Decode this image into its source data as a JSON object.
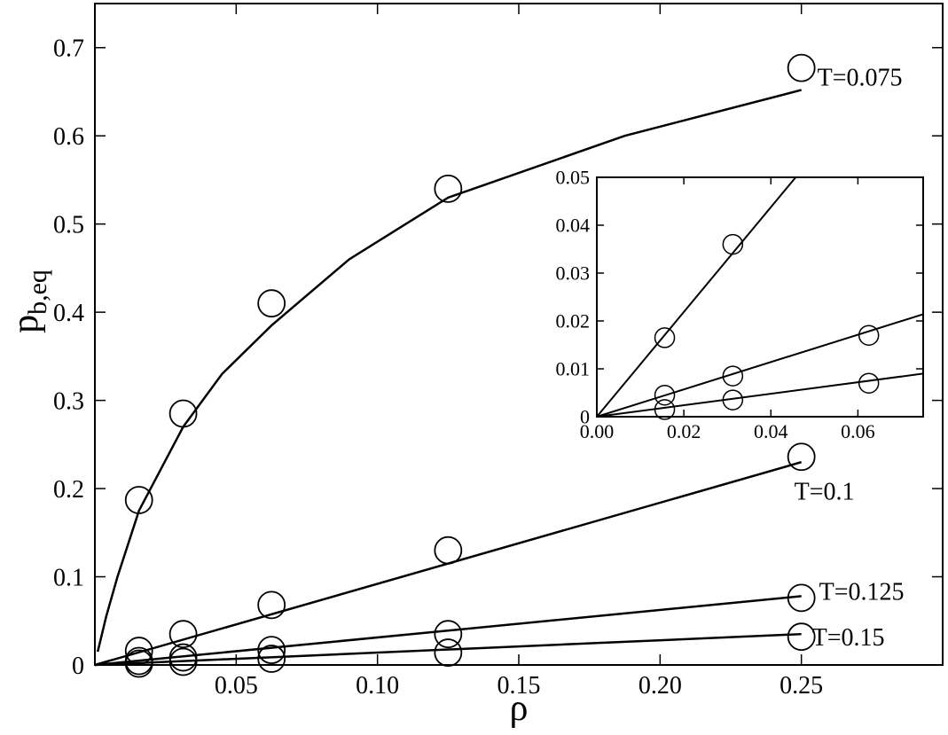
{
  "chart_data": [
    {
      "type": "scatter",
      "xlabel": "ρ",
      "ylabel": {
        "text": "p",
        "subscript": "b,eq"
      },
      "xlim": [
        0,
        0.3
      ],
      "ylim": [
        0,
        0.75
      ],
      "xticks": [
        0.05,
        {
          "value": 0.1,
          "label": "0.10"
        },
        0.15,
        {
          "value": 0.2,
          "label": "0.20"
        },
        0.25
      ],
      "yticks": [
        0,
        0.1,
        0.2,
        0.3,
        0.4,
        0.5,
        0.6,
        0.7
      ],
      "series": [
        {
          "name": "T=0.075",
          "color": "#000000",
          "x": [
            0.0156,
            0.03125,
            0.0625,
            0.125,
            0.25
          ],
          "values": [
            0.187,
            0.285,
            0.41,
            0.54,
            0.677
          ],
          "fit": {
            "x": [
              0.001,
              0.004,
              0.008,
              0.0156,
              0.03125,
              0.045,
              0.0625,
              0.09,
              0.125,
              0.1875,
              0.25
            ],
            "values": [
              0.015,
              0.055,
              0.1,
              0.175,
              0.27,
              0.33,
              0.385,
              0.46,
              0.53,
              0.6,
              0.652
            ]
          }
        },
        {
          "name": "T=0.1",
          "color": "#000000",
          "x": [
            0.0156,
            0.03125,
            0.0625,
            0.125,
            0.25
          ],
          "values": [
            0.016,
            0.035,
            0.068,
            0.13,
            0.236
          ],
          "fit": {
            "x": [
              0,
              0.25
            ],
            "values": [
              0,
              0.23
            ]
          }
        },
        {
          "name": "T=0.125",
          "color": "#000000",
          "x": [
            0.0156,
            0.03125,
            0.0625,
            0.125,
            0.25
          ],
          "values": [
            0.0045,
            0.0085,
            0.017,
            0.035,
            0.076
          ],
          "fit": {
            "x": [
              0,
              0.25
            ],
            "values": [
              0,
              0.078
            ]
          }
        },
        {
          "name": "T=0.15",
          "color": "#000000",
          "x": [
            0.0156,
            0.03125,
            0.0625,
            0.125,
            0.25
          ],
          "values": [
            0.0015,
            0.0035,
            0.007,
            0.014,
            0.032
          ],
          "fit": {
            "x": [
              0,
              0.25
            ],
            "values": [
              0,
              0.035
            ]
          }
        }
      ]
    },
    {
      "type": "scatter",
      "xlim": [
        0,
        0.075
      ],
      "ylim": [
        0,
        0.05
      ],
      "xticks": [
        {
          "value": 0,
          "label": "0.00"
        },
        0.02,
        0.04,
        0.06
      ],
      "yticks": [
        0,
        0.01,
        0.02,
        0.03,
        0.04,
        0.05
      ],
      "series": [
        {
          "color": "#000000",
          "x": [
            0.0156,
            0.03125
          ],
          "values": [
            0.0165,
            0.036
          ],
          "fit": {
            "x": [
              0,
              0.0457
            ],
            "values": [
              0,
              0.05
            ]
          }
        },
        {
          "color": "#000000",
          "x": [
            0.0156,
            0.03125,
            0.0625
          ],
          "values": [
            0.0045,
            0.0085,
            0.017
          ],
          "fit": {
            "x": [
              0,
              0.075
            ],
            "values": [
              0,
              0.0214
            ]
          }
        },
        {
          "color": "#000000",
          "x": [
            0.0156,
            0.03125,
            0.0625
          ],
          "values": [
            0.0015,
            0.0035,
            0.007
          ],
          "fit": {
            "x": [
              0,
              0.075
            ],
            "values": [
              0,
              0.009
            ]
          }
        }
      ]
    }
  ]
}
